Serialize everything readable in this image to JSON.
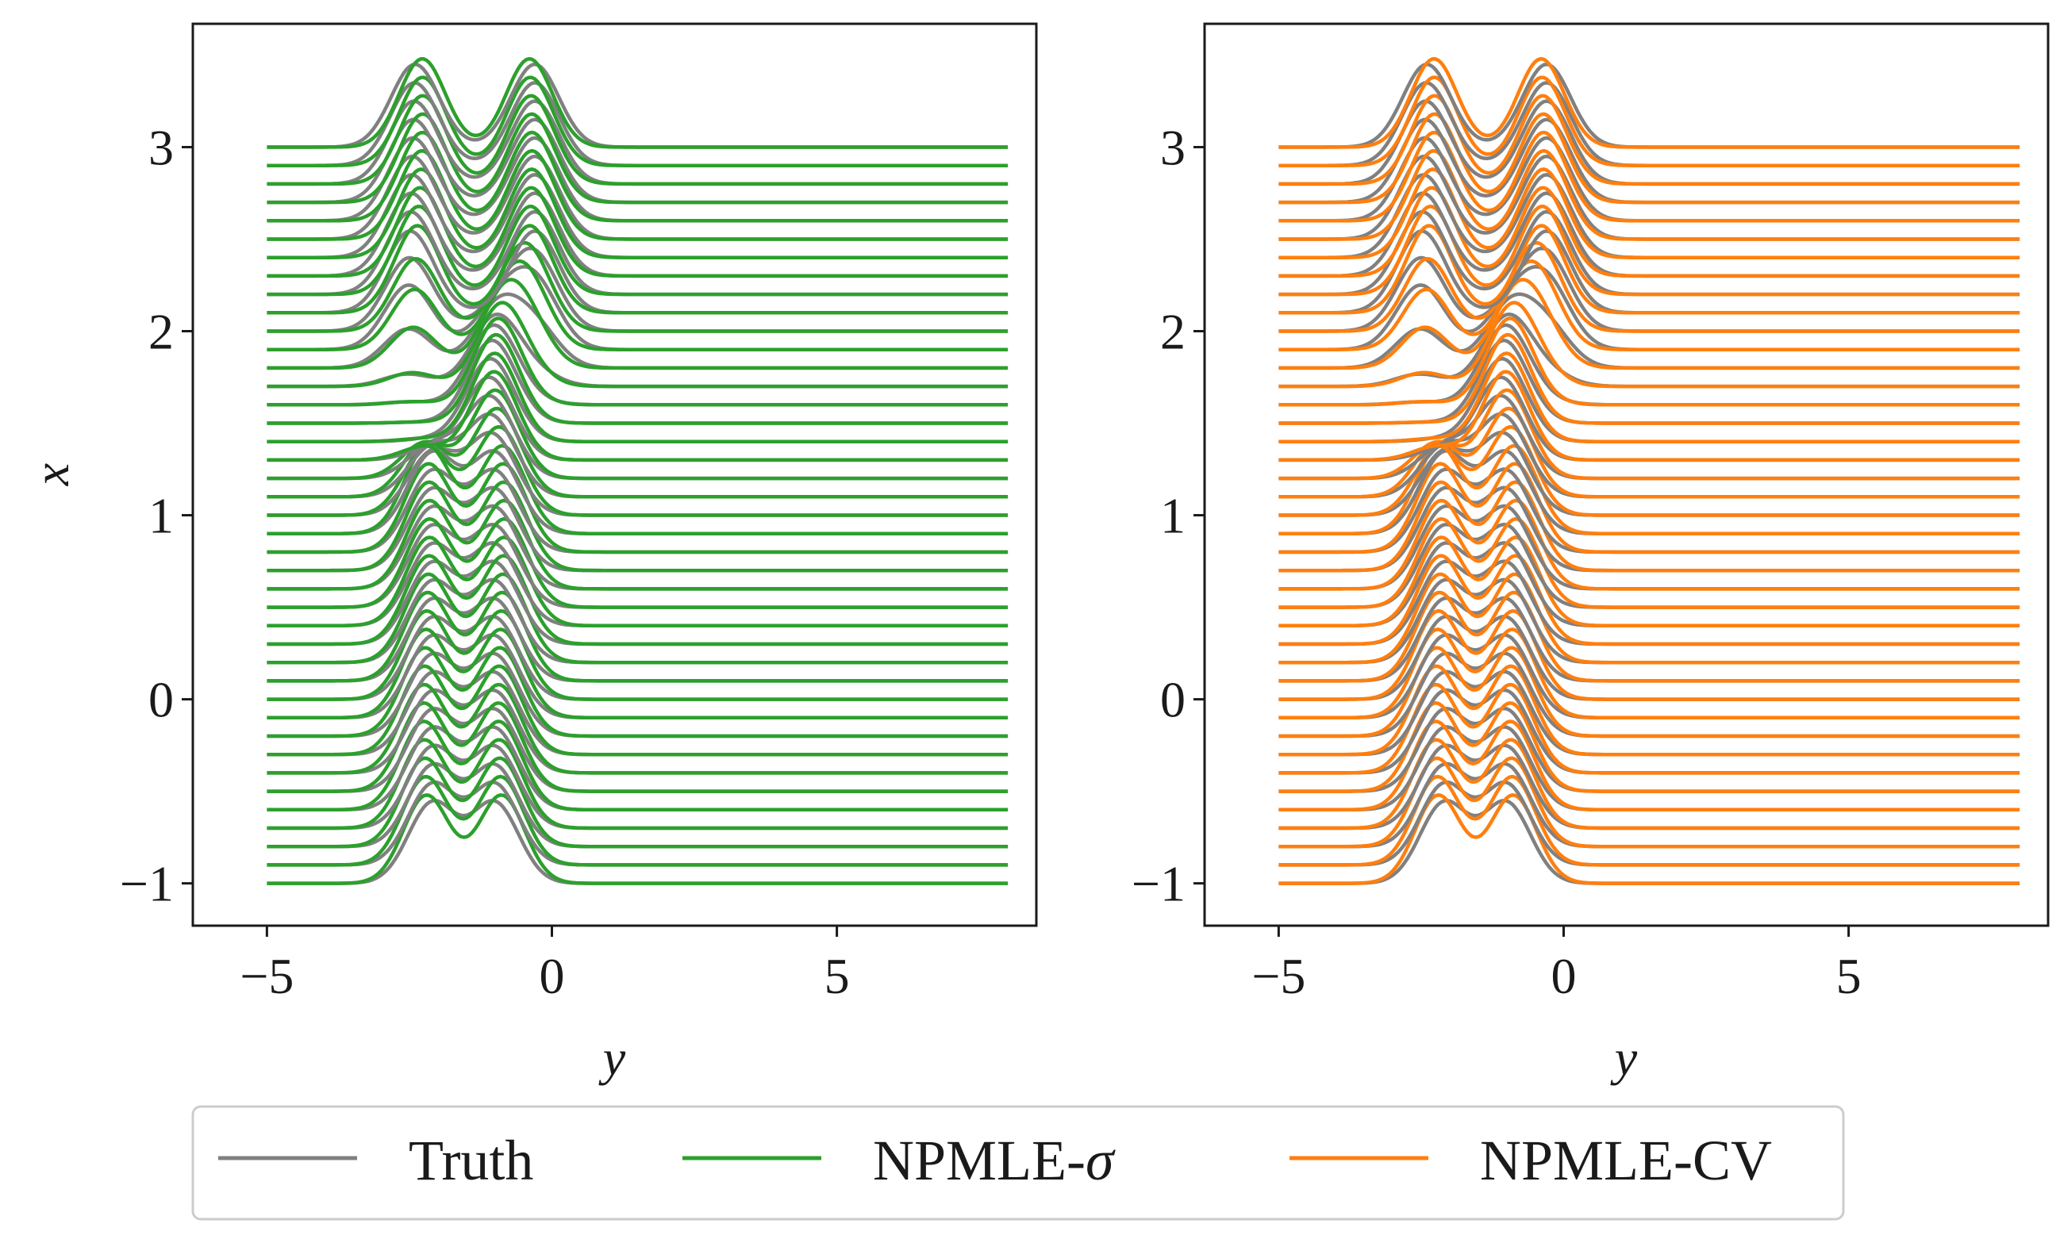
{
  "colors": {
    "truth": "#808080",
    "npmle_sigma": "#2ca02c",
    "npmle_cv": "#ff7f0e"
  },
  "legend": {
    "truth": "Truth",
    "npmle_sigma_prefix": "NPMLE-",
    "npmle_sigma_symbol": "σ",
    "npmle_cv": "NPMLE-CV"
  },
  "chart_data": [
    {
      "type": "line",
      "title": "",
      "xlabel": "y",
      "ylabel": "x",
      "xlim": [
        -6.3,
        8.5
      ],
      "ylim": [
        -1.23,
        3.67
      ],
      "xticks": [
        -5,
        0,
        5
      ],
      "xtick_labels": [
        "−5",
        "0",
        "5"
      ],
      "yticks": [
        -1,
        0,
        1,
        2,
        3
      ],
      "ytick_labels": [
        "−1",
        "0",
        "1",
        "2",
        "3"
      ],
      "grid": false,
      "description_of_series": "ridgeline of conditional densities of y given x; one curve per baseline x from -1 to 3 in steps of 0.1, curves span y from -5 to 8",
      "baselines": {
        "start": -1,
        "stop": 3,
        "step": 0.1
      },
      "y_range": [
        -5,
        8
      ],
      "series": [
        {
          "name": "Truth",
          "color": "#808080",
          "peak_height": 0.45
        },
        {
          "name": "NPMLE-σ",
          "color": "#2ca02c",
          "peak_height": 0.48
        }
      ]
    },
    {
      "type": "line",
      "title": "",
      "xlabel": "y",
      "ylabel": "",
      "xlim": [
        -6.3,
        8.5
      ],
      "ylim": [
        -1.23,
        3.67
      ],
      "xticks": [
        -5,
        0,
        5
      ],
      "xtick_labels": [
        "−5",
        "0",
        "5"
      ],
      "yticks": [
        -1,
        0,
        1,
        2,
        3
      ],
      "ytick_labels": [
        "−1",
        "0",
        "1",
        "2",
        "3"
      ],
      "grid": false,
      "baselines": {
        "start": -1,
        "stop": 3,
        "step": 0.1
      },
      "y_range": [
        -5,
        8
      ],
      "series": [
        {
          "name": "Truth",
          "color": "#808080",
          "peak_height": 0.45
        },
        {
          "name": "NPMLE-CV",
          "color": "#ff7f0e",
          "peak_height": 0.48
        }
      ]
    }
  ]
}
